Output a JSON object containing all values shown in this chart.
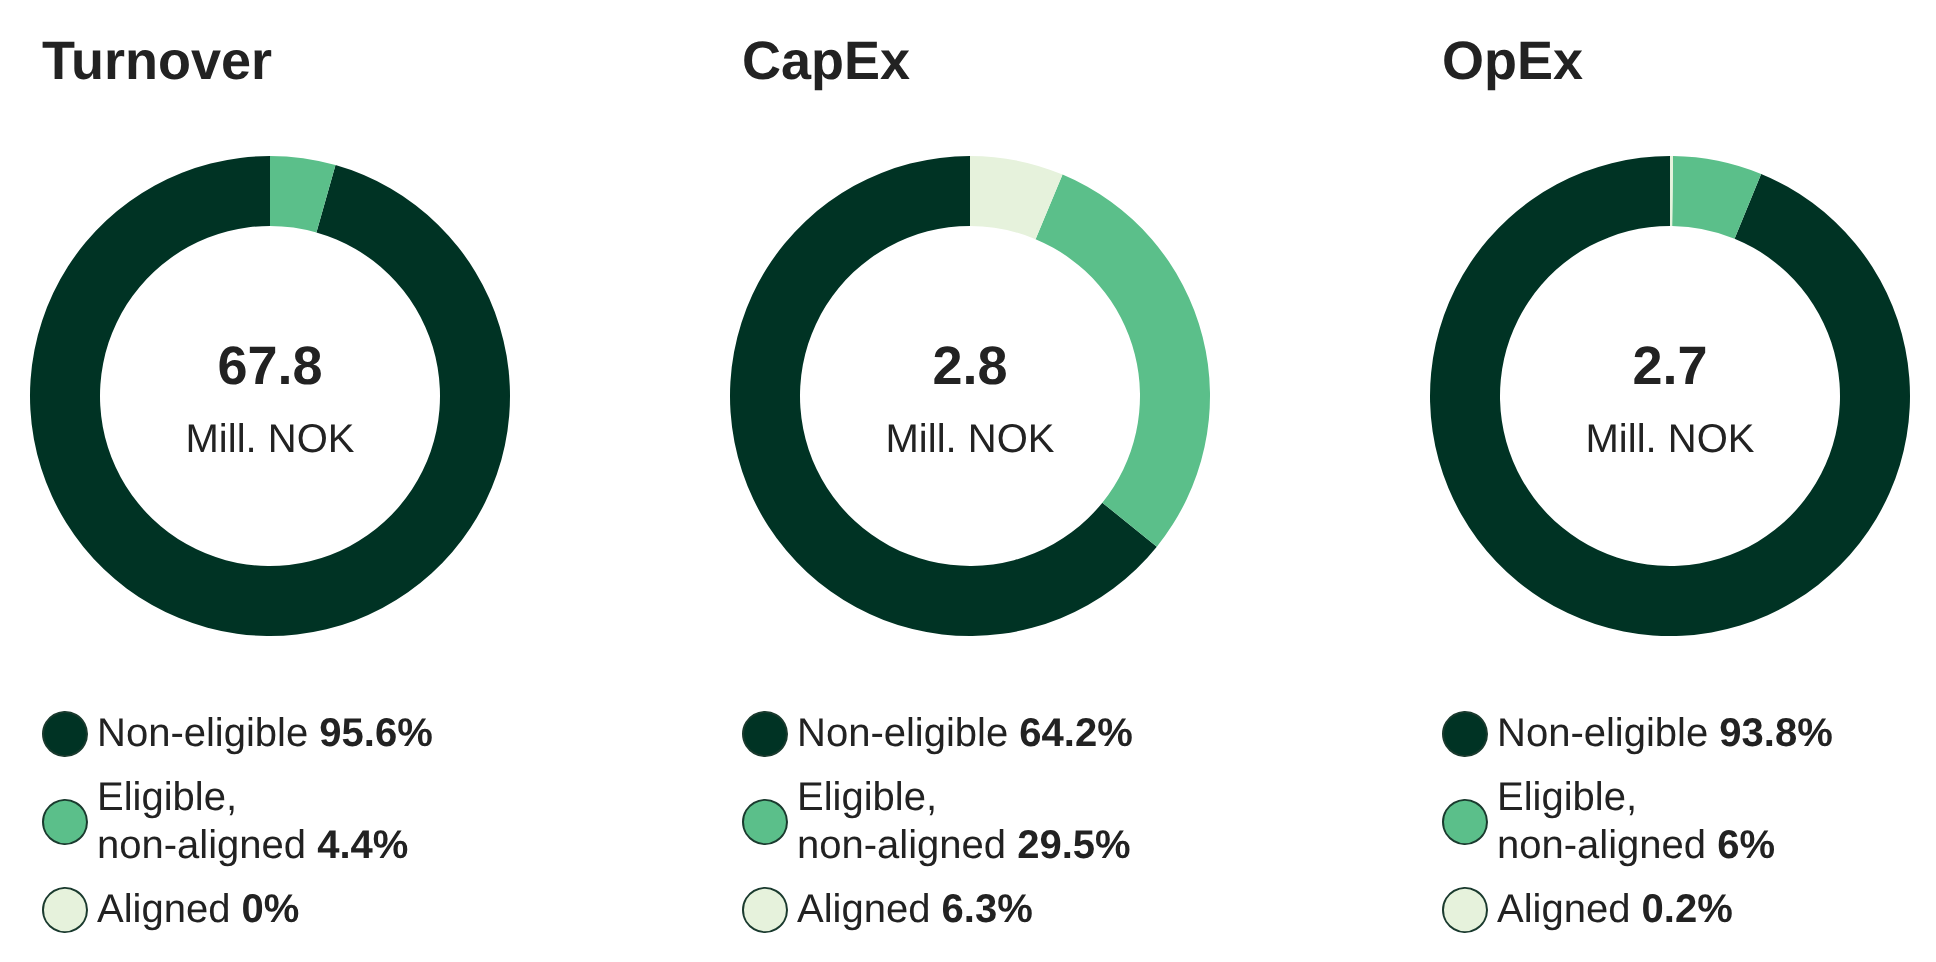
{
  "chart_data": [
    {
      "type": "donut",
      "title": "Turnover",
      "categories": [
        "Non-eligible",
        "Eligible, non-aligned",
        "Aligned"
      ],
      "values": [
        95.6,
        4.4,
        0
      ],
      "value_labels": [
        "95.6%",
        "4.4%",
        "0%"
      ],
      "colors": [
        "#003324",
        "#5bbf8a",
        "#e6f2dc"
      ],
      "annotations": [
        "67.8",
        "Mill. NOK"
      ],
      "legend": "bottom"
    },
    {
      "type": "donut",
      "title": "CapEx",
      "categories": [
        "Non-eligible",
        "Eligible, non-aligned",
        "Aligned"
      ],
      "values": [
        64.2,
        29.5,
        6.3
      ],
      "value_labels": [
        "64.2%",
        "29.5%",
        "6.3%"
      ],
      "colors": [
        "#003324",
        "#5bbf8a",
        "#e6f2dc"
      ],
      "annotations": [
        "2.8",
        "Mill. NOK"
      ],
      "legend": "bottom"
    },
    {
      "type": "donut",
      "title": "OpEx",
      "categories": [
        "Non-eligible",
        "Eligible, non-aligned",
        "Aligned"
      ],
      "values": [
        93.8,
        6,
        0.2
      ],
      "value_labels": [
        "93.8%",
        "6%",
        "0.2%"
      ],
      "colors": [
        "#003324",
        "#5bbf8a",
        "#e6f2dc"
      ],
      "annotations": [
        "2.7",
        "Mill. NOK"
      ],
      "legend": "bottom"
    }
  ]
}
